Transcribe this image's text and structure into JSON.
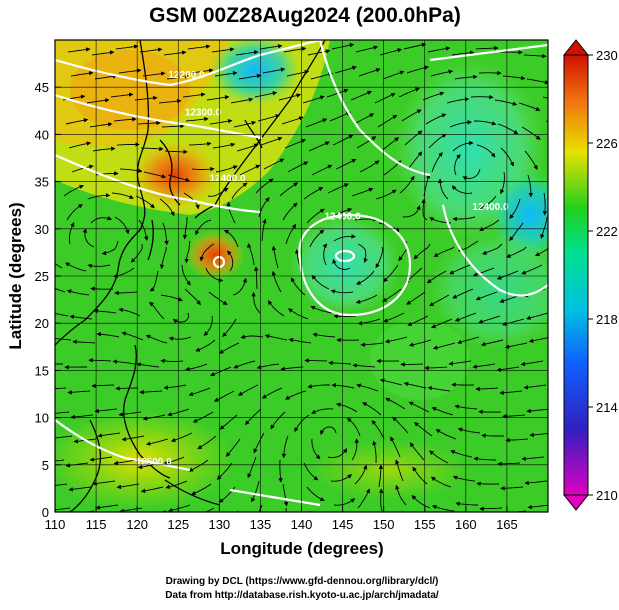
{
  "title": "GSM 00Z28Aug2024 (200.0hPa)",
  "xlabel": "Longitude (degrees)",
  "ylabel": "Latitude  (degrees)",
  "credits": [
    "Drawing by DCL (https://www.gfd-dennou.org/library/dcl/)",
    "Data from http://database.rish.kyoto-u.ac.jp/arch/jmadata/"
  ],
  "chart_data": {
    "type": "heatmap",
    "xlim": [
      110,
      170
    ],
    "ylim": [
      0,
      50
    ],
    "x_ticks": [
      "110",
      "115",
      "120",
      "125",
      "130",
      "135",
      "140",
      "145",
      "150",
      "155",
      "160",
      "165"
    ],
    "y_ticks": [
      "0",
      "5",
      "10",
      "15",
      "20",
      "25",
      "30",
      "35",
      "40",
      "45"
    ],
    "colorbar": {
      "min": 210,
      "max": 230,
      "ticks": [
        "210",
        "214",
        "218",
        "222",
        "226",
        "230"
      ],
      "colors": [
        "#e000c0",
        "#2020c0",
        "#00a0ff",
        "#00e0a0",
        "#20d020",
        "#f0e000",
        "#f07010",
        "#d01000"
      ]
    },
    "contour_labels": [
      {
        "text": "12200.0",
        "lon": 126,
        "lat": 46
      },
      {
        "text": "12300.0",
        "lon": 128,
        "lat": 42
      },
      {
        "text": "12400.0",
        "lon": 131,
        "lat": 35
      },
      {
        "text": "12400.0",
        "lon": 145,
        "lat": 31
      },
      {
        "text": "12400.0",
        "lon": 163,
        "lat": 32
      },
      {
        "text": "12500.0",
        "lon": 122,
        "lat": 5
      }
    ],
    "grid": true
  }
}
